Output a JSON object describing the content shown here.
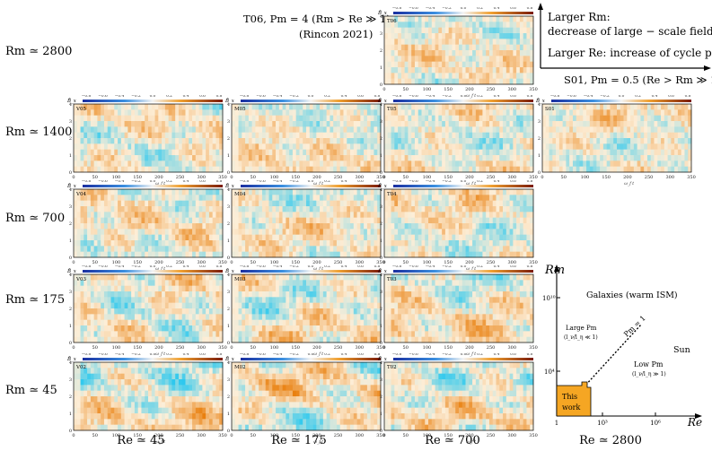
{
  "annotations": {
    "t06_title": "T06, Pm = 4 (Rm > Re ≫ 1)",
    "t06_ref": "(Rincon 2021)",
    "s01_title": "S01, Pm = 0.5 (Re > Rm ≫ 1)",
    "larger_rm_1": "Larger Rm:",
    "larger_rm_2": "decrease of large − scale field",
    "larger_re": "Larger Re:  increase of cycle periods"
  },
  "rows": [
    {
      "label": "Rm ≃ 2800"
    },
    {
      "label": "Rm ≃ 1400"
    },
    {
      "label": "Rm ≃ 700"
    },
    {
      "label": "Rm ≃ 175"
    },
    {
      "label": "Rm ≃ 45"
    }
  ],
  "columns": [
    {
      "label": "Re ≃ 45"
    },
    {
      "label": "Re ≃ 175"
    },
    {
      "label": "Re ≃ 700"
    },
    {
      "label": "Re ≃ 2800"
    }
  ],
  "panels": [
    {
      "id": "T06",
      "row": 0,
      "col": 2,
      "seed": 6,
      "amp": 0.6
    },
    {
      "id": "V05",
      "row": 1,
      "col": 0,
      "seed": 15,
      "amp": 0.7
    },
    {
      "id": "M05",
      "row": 1,
      "col": 1,
      "seed": 25,
      "amp": 0.55
    },
    {
      "id": "T05",
      "row": 1,
      "col": 2,
      "seed": 35,
      "amp": 0.65
    },
    {
      "id": "S01",
      "row": 1,
      "col": 3,
      "seed": 45,
      "amp": 0.6
    },
    {
      "id": "V04",
      "row": 2,
      "col": 0,
      "seed": 14,
      "amp": 0.75
    },
    {
      "id": "M04",
      "row": 2,
      "col": 1,
      "seed": 24,
      "amp": 0.7
    },
    {
      "id": "T04",
      "row": 2,
      "col": 2,
      "seed": 34,
      "amp": 0.7
    },
    {
      "id": "V03",
      "row": 3,
      "col": 0,
      "seed": 13,
      "amp": 0.8
    },
    {
      "id": "M03",
      "row": 3,
      "col": 1,
      "seed": 23,
      "amp": 0.85
    },
    {
      "id": "T03",
      "row": 3,
      "col": 2,
      "seed": 33,
      "amp": 0.85
    },
    {
      "id": "V02",
      "row": 4,
      "col": 0,
      "seed": 12,
      "amp": 0.95
    },
    {
      "id": "M02",
      "row": 4,
      "col": 1,
      "seed": 22,
      "amp": 1.0
    },
    {
      "id": "T02",
      "row": 4,
      "col": 2,
      "seed": 32,
      "amp": 0.9
    }
  ],
  "panel_axes": {
    "xticks": [
      "0",
      "50",
      "100",
      "150",
      "200",
      "250",
      "300",
      "350"
    ],
    "yticks": [
      "0",
      "1",
      "2",
      "3",
      "4"
    ],
    "xlabel": "ω_f t",
    "ylabel": "z",
    "colorbar_label": "B̄_x",
    "colorbar_ticks": [
      "−0.8",
      "−0.6",
      "−0.4",
      "−0.2",
      "0.0",
      "0.2",
      "0.4",
      "0.6",
      "0.8"
    ]
  },
  "regime_diagram": {
    "y_axis_label": "Rm",
    "x_axis_label": "Re",
    "x_ticks": [
      "1",
      "10³",
      "10⁶"
    ],
    "y_ticks": [
      "10⁴",
      "10¹⁰"
    ],
    "galaxies": "Galaxies (warm ISM)",
    "sun": "Sun",
    "large_pm": "Large Pm",
    "large_pm_sub": "(l_ν/l_η ≪ 1)",
    "low_pm": "Low  Pm",
    "low_pm_sub": "(l_ν/l_η ≫ 1)",
    "pm_line": "Pm = 1",
    "this_work_1": "This",
    "this_work_2": "work",
    "this_work_color": "#f5a623"
  }
}
